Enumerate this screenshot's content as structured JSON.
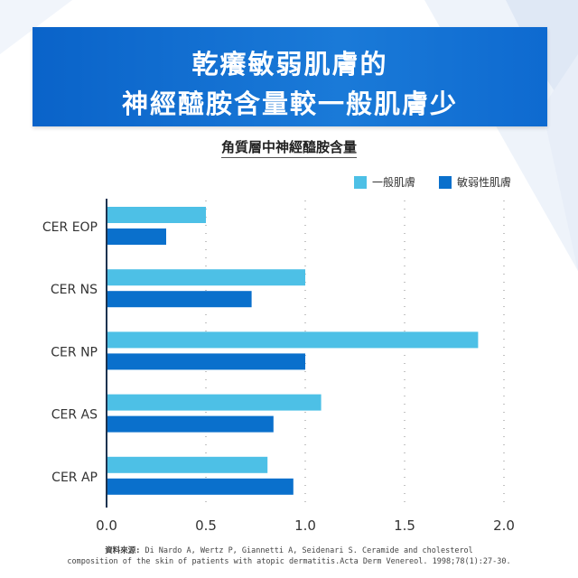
{
  "banner": {
    "line1": "乾癢敏弱肌膚的",
    "line2": "神經醯胺含量較一般肌膚少"
  },
  "colors": {
    "banner": "#0a63c9",
    "normal": "#4dc0e6",
    "sensitive": "#0a70cc"
  },
  "chart_data": {
    "type": "bar",
    "orientation": "horizontal",
    "title": "角質層中神經醯胺含量",
    "categories": [
      "CER EOP",
      "CER NS",
      "CER NP",
      "CER AS",
      "CER AP"
    ],
    "series": [
      {
        "name": "一般肌膚",
        "color": "#4dc0e6",
        "values": [
          0.5,
          1.0,
          1.87,
          1.08,
          0.81
        ]
      },
      {
        "name": "敏弱性肌膚",
        "color": "#0a70cc",
        "values": [
          0.3,
          0.73,
          1.0,
          0.84,
          0.94
        ]
      }
    ],
    "xlim": [
      0,
      2.0
    ],
    "xticks": [
      "0.0",
      "0.5",
      "1.0",
      "1.5",
      "2.0"
    ],
    "grid": "dotted vertical",
    "legend": "top-right"
  },
  "source": {
    "label": "資料來源:",
    "line1": "Di Nardo A, Wertz P, Giannetti A, Seidenari S. Ceramide and cholesterol",
    "line2": "composition of the skin of patients with atopic dermatitis.Acta Derm Venereol. 1998;78(1):27-30."
  }
}
